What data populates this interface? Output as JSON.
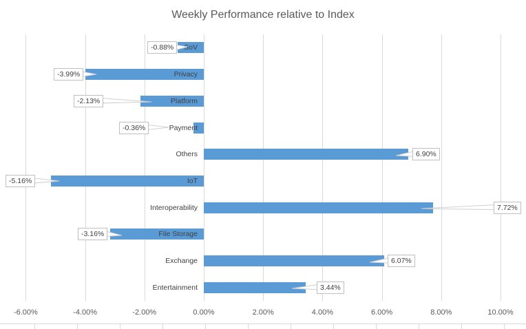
{
  "chart_data": {
    "type": "bar",
    "orientation": "horizontal",
    "title": "Weekly Performance relative to Index",
    "categories": [
      "SoV",
      "Privacy",
      "Platform",
      "Payment",
      "Others",
      "IoT",
      "Interoperability",
      "File Storage",
      "Exchange",
      "Entertainment"
    ],
    "values": [
      -0.88,
      -3.99,
      -2.13,
      -0.36,
      6.9,
      -5.16,
      7.72,
      -3.16,
      6.07,
      3.44
    ],
    "data_labels": [
      "-0.88%",
      "-3.99%",
      "-2.13%",
      "-0.36%",
      "6.90%",
      "-5.16%",
      "7.72%",
      "-3.16%",
      "6.07%",
      "3.44%"
    ],
    "x_tick_labels": [
      "-6.00%",
      "-4.00%",
      "-2.00%",
      "0.00%",
      "2.00%",
      "4.00%",
      "6.00%",
      "8.00%",
      "10.00%"
    ],
    "x_tick_values": [
      -6,
      -4,
      -2,
      0,
      2,
      4,
      6,
      8,
      10
    ],
    "xlim": [
      -6,
      10
    ],
    "grid": true,
    "legend": "none",
    "data_label_style": "callout-box",
    "colors": {
      "bar": "#5B9BD5",
      "gridline": "#D9D9D9",
      "title_text": "#595959",
      "axis_text": "#595959",
      "label_text": "#404040",
      "label_box_border": "#BFBFBF",
      "leader_line": "#CFCFCF"
    }
  }
}
